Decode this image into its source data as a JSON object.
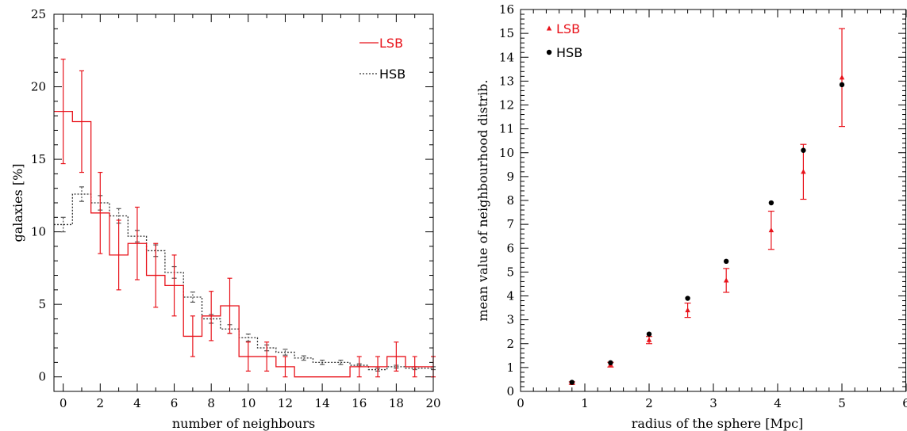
{
  "chart_data": [
    {
      "type": "step",
      "title": "",
      "xlabel": "number of neighbours",
      "ylabel": "galaxies [%]",
      "xlim": [
        -0.5,
        20
      ],
      "ylim": [
        -1,
        25
      ],
      "xticks": [
        0,
        2,
        4,
        6,
        8,
        10,
        12,
        14,
        16,
        18,
        20
      ],
      "yticks": [
        0,
        5,
        10,
        15,
        20,
        25
      ],
      "legend_position": "top-right",
      "series": [
        {
          "name": "LSB",
          "style": "solid",
          "color": "#e8131b",
          "x": [
            0,
            1,
            2,
            3,
            4,
            5,
            6,
            7,
            8,
            9,
            10,
            11,
            12,
            13,
            14,
            15,
            16,
            17,
            18,
            19,
            20
          ],
          "y": [
            18.3,
            17.6,
            11.3,
            8.4,
            9.2,
            7.0,
            6.3,
            2.8,
            4.2,
            4.9,
            1.4,
            1.4,
            0.7,
            0.0,
            0.0,
            0.0,
            0.7,
            0.7,
            1.4,
            0.7,
            0.7
          ],
          "err": [
            3.6,
            3.5,
            2.8,
            2.4,
            2.5,
            2.2,
            2.1,
            1.4,
            1.7,
            1.9,
            1.0,
            1.0,
            0.7,
            0,
            0,
            0,
            0.7,
            0.7,
            1.0,
            0.7,
            0.7
          ]
        },
        {
          "name": "HSB",
          "style": "dotted",
          "color": "#333333",
          "x": [
            0,
            1,
            2,
            3,
            4,
            5,
            6,
            7,
            8,
            9,
            10,
            11,
            12,
            13,
            14,
            15,
            16,
            17,
            18,
            19,
            20
          ],
          "y": [
            10.5,
            12.6,
            12.0,
            11.1,
            9.7,
            8.7,
            7.2,
            5.5,
            4.0,
            3.3,
            2.7,
            2.0,
            1.7,
            1.3,
            1.0,
            1.0,
            0.8,
            0.5,
            0.7,
            0.6,
            0.6
          ],
          "err": [
            0.5,
            0.5,
            0.5,
            0.5,
            0.4,
            0.4,
            0.4,
            0.35,
            0.3,
            0.3,
            0.25,
            0.2,
            0.2,
            0.15,
            0.15,
            0.15,
            0.1,
            0.1,
            0.1,
            0.1,
            0.1
          ]
        }
      ]
    },
    {
      "type": "scatter",
      "title": "",
      "xlabel": "radius of the sphere [Mpc]",
      "ylabel": "mean value of neighbourhood distrib.",
      "xlim": [
        0,
        6
      ],
      "ylim": [
        0,
        16
      ],
      "xticks": [
        0,
        1,
        2,
        3,
        4,
        5,
        6
      ],
      "yticks": [
        0,
        1,
        2,
        3,
        4,
        5,
        6,
        7,
        8,
        9,
        10,
        11,
        12,
        13,
        14,
        15,
        16
      ],
      "legend_position": "top-left",
      "series": [
        {
          "name": "LSB",
          "marker": "triangle",
          "color": "#e8131b",
          "x": [
            0.8,
            1.4,
            2.0,
            2.6,
            3.2,
            3.9,
            4.4,
            5.0
          ],
          "y": [
            0.35,
            1.12,
            2.15,
            3.4,
            4.65,
            6.75,
            9.2,
            13.15
          ],
          "err": [
            0.05,
            0.1,
            0.15,
            0.3,
            0.5,
            0.8,
            1.15,
            2.05
          ]
        },
        {
          "name": "HSB",
          "marker": "circle",
          "color": "#000000",
          "x": [
            0.8,
            1.4,
            2.0,
            2.6,
            3.2,
            3.9,
            4.4,
            5.0
          ],
          "y": [
            0.38,
            1.2,
            2.4,
            3.9,
            5.45,
            7.9,
            10.1,
            12.85
          ]
        }
      ]
    }
  ]
}
